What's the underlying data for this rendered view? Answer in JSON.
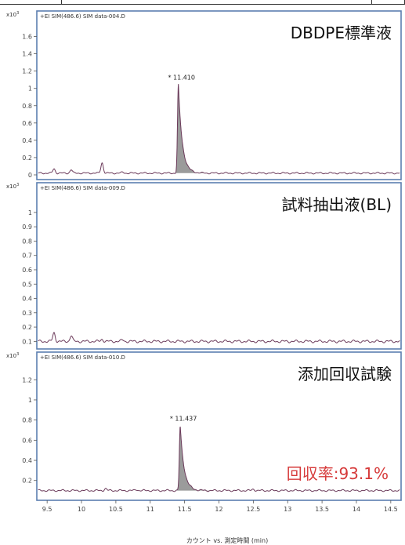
{
  "colors": {
    "frame": "#5b7fb0",
    "trace": "#6b3a5a",
    "peak_fill": "#8a8a8a",
    "recovery_text": "#d63a3a"
  },
  "chart_data": [
    {
      "type": "line",
      "header": "+EI SIM(486.6) SIM data-004.D",
      "exponent": "x10",
      "exponent_power": "3",
      "title": "DBDPE標準液",
      "yticks": [
        "0",
        "0.2",
        "0.4",
        "0.6",
        "0.8",
        "1",
        "1.2",
        "1.4",
        "1.6"
      ],
      "ylim": [
        0,
        1.75
      ],
      "baseline": 0.02,
      "noise_bumps": [
        [
          9.6,
          0.05
        ],
        [
          9.85,
          0.04
        ],
        [
          10.3,
          0.12
        ],
        [
          10.6,
          0.01
        ]
      ],
      "peak": {
        "x": 11.41,
        "height": 1.02,
        "label": "11.410"
      },
      "annotation": ""
    },
    {
      "type": "line",
      "header": "+EI SIM(486.6) SIM data-009.D",
      "exponent": "x10",
      "exponent_power": "3",
      "title": "試料抽出液(BL)",
      "yticks": [
        "0.1",
        "0.2",
        "0.3",
        "0.4",
        "0.5",
        "0.6",
        "0.7",
        "0.8",
        "0.9",
        "1"
      ],
      "ylim": [
        0.08,
        1.12
      ],
      "baseline": 0.1,
      "noise_bumps": [
        [
          9.6,
          0.06
        ],
        [
          9.85,
          0.04
        ],
        [
          10.3,
          0.015
        ],
        [
          10.6,
          0.01
        ]
      ],
      "peak": null,
      "annotation": ""
    },
    {
      "type": "line",
      "header": "+EI SIM(486.6) SIM data-010.D",
      "exponent": "x10",
      "exponent_power": "3",
      "title": "添加回収試験",
      "yticks": [
        "0.2",
        "0.4",
        "0.6",
        "0.8",
        "1",
        "1.2"
      ],
      "ylim": [
        0.05,
        1.35
      ],
      "baseline": 0.1,
      "noise_bumps": [
        [
          10.35,
          0.02
        ],
        [
          10.8,
          0.01
        ],
        [
          12.5,
          0.015
        ]
      ],
      "peak": {
        "x": 11.437,
        "height": 0.64,
        "label": "11.437"
      },
      "annotation": "回収率:93.1%"
    }
  ],
  "x_axis": {
    "xlim": [
      9.35,
      14.65
    ],
    "ticks": [
      "9.5",
      "10",
      "10.5",
      "11",
      "11.5",
      "12",
      "12.5",
      "13",
      "13.5",
      "14",
      "14.5"
    ],
    "label": "カウント vs. 測定時間 (min)"
  }
}
